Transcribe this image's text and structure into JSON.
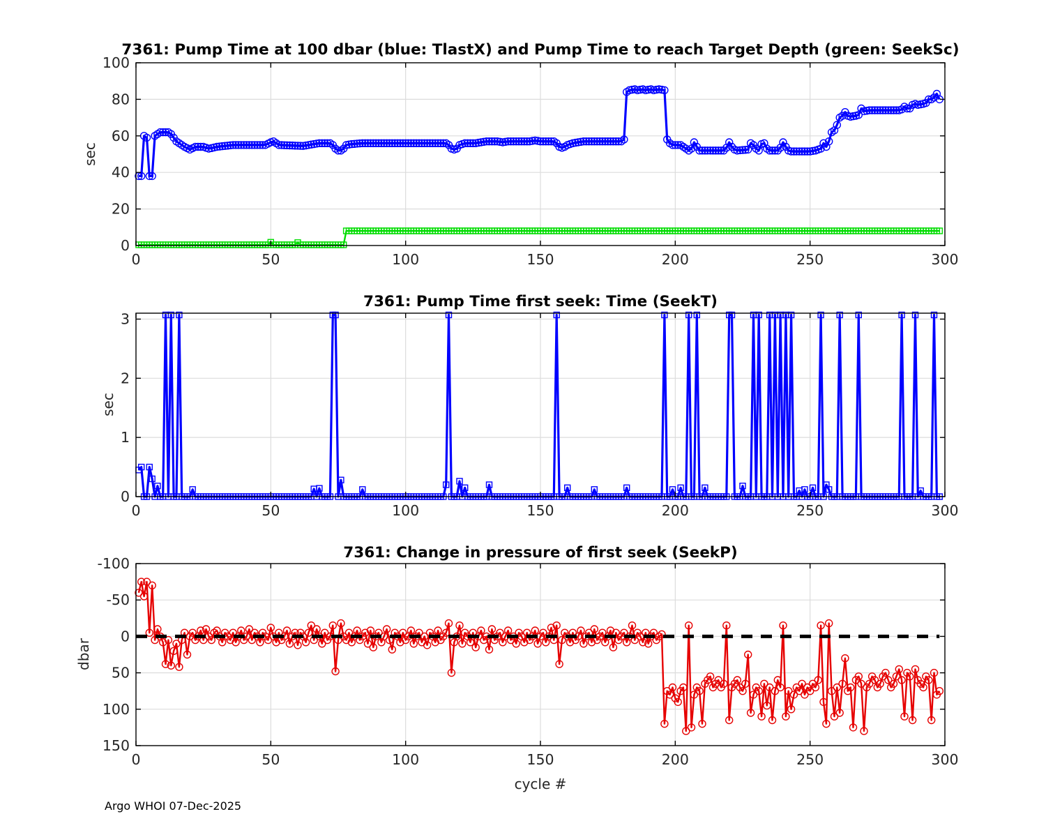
{
  "page": {
    "footer": "Argo WHOI 07-Dec-2025",
    "background": "#ffffff"
  },
  "colors": {
    "blue": "#0000ff",
    "green": "#00dd00",
    "red": "#e60000",
    "grid": "#dcdcdc",
    "axis": "#000000",
    "tick_label": "#262626",
    "dashed_zero": "#000000"
  },
  "chart_data": [
    {
      "id": "pump-time-100dbar",
      "type": "line",
      "title": "7361:  Pump Time at 100 dbar (blue: TlastX) and Pump Time to reach Target Depth (green: SeekSc)",
      "ylabel": "sec",
      "xlabel": "",
      "xlim": [
        0,
        300
      ],
      "ylim": [
        0,
        100
      ],
      "yreverse": false,
      "xticks": [
        0,
        50,
        100,
        150,
        200,
        250,
        300
      ],
      "yticks": [
        0,
        20,
        40,
        60,
        80,
        100
      ],
      "grid": true,
      "series": [
        {
          "name": "TlastX",
          "color": "blue",
          "marker": "circle",
          "interpolate": "unit",
          "keypoints": [
            [
              1,
              38
            ],
            [
              2,
              38
            ],
            [
              3,
              60
            ],
            [
              4,
              59
            ],
            [
              5,
              38
            ],
            [
              6,
              38
            ],
            [
              7,
              60
            ],
            [
              8,
              61
            ],
            [
              9,
              62
            ],
            [
              12,
              62
            ],
            [
              13,
              61
            ],
            [
              14,
              59
            ],
            [
              15,
              57
            ],
            [
              16,
              56
            ],
            [
              17,
              55
            ],
            [
              18,
              54
            ],
            [
              20,
              52.5
            ],
            [
              22,
              54
            ],
            [
              25,
              54
            ],
            [
              27,
              53
            ],
            [
              30,
              54
            ],
            [
              33,
              54.5
            ],
            [
              36,
              55
            ],
            [
              48,
              55
            ],
            [
              50,
              56.5
            ],
            [
              51,
              57
            ],
            [
              52,
              56
            ],
            [
              53,
              55
            ],
            [
              62,
              54.5
            ],
            [
              66,
              55.5
            ],
            [
              68,
              56
            ],
            [
              72,
              56
            ],
            [
              73,
              55
            ],
            [
              74,
              53
            ],
            [
              75,
              52
            ],
            [
              76,
              52
            ],
            [
              77,
              53
            ],
            [
              78,
              55
            ],
            [
              80,
              55.5
            ],
            [
              84,
              56
            ],
            [
              112,
              56
            ],
            [
              115,
              56
            ],
            [
              116,
              55
            ],
            [
              117,
              53
            ],
            [
              118,
              52.5
            ],
            [
              119,
              53
            ],
            [
              120,
              55
            ],
            [
              122,
              56
            ],
            [
              126,
              56
            ],
            [
              130,
              57
            ],
            [
              134,
              57
            ],
            [
              136,
              56.5
            ],
            [
              138,
              57
            ],
            [
              146,
              57
            ],
            [
              148,
              57.5
            ],
            [
              150,
              57
            ],
            [
              155,
              57
            ],
            [
              156,
              56
            ],
            [
              157,
              54
            ],
            [
              158,
              53.5
            ],
            [
              159,
              54
            ],
            [
              160,
              55
            ],
            [
              162,
              56
            ],
            [
              164,
              56.5
            ],
            [
              166,
              57
            ],
            [
              180,
              57
            ],
            [
              181,
              58
            ],
            [
              182,
              84
            ],
            [
              183,
              85
            ],
            [
              185,
              85.5
            ],
            [
              186,
              85
            ],
            [
              188,
              85.5
            ],
            [
              189,
              85
            ],
            [
              191,
              85.5
            ],
            [
              192,
              85
            ],
            [
              194,
              85.5
            ],
            [
              196,
              85
            ],
            [
              197,
              58
            ],
            [
              198,
              56
            ],
            [
              199,
              55
            ],
            [
              202,
              55
            ],
            [
              203,
              54
            ],
            [
              205,
              52
            ],
            [
              206,
              53
            ],
            [
              207,
              56.5
            ],
            [
              208,
              54
            ],
            [
              209,
              52
            ],
            [
              218,
              52
            ],
            [
              219,
              53.5
            ],
            [
              220,
              56.5
            ],
            [
              221,
              54
            ],
            [
              222,
              52.5
            ],
            [
              223,
              52
            ],
            [
              227,
              52.5
            ],
            [
              228,
              56
            ],
            [
              229,
              55
            ],
            [
              230,
              53
            ],
            [
              231,
              52
            ],
            [
              232,
              55.5
            ],
            [
              233,
              56
            ],
            [
              234,
              53
            ],
            [
              235,
              52
            ],
            [
              238,
              52
            ],
            [
              239,
              53.5
            ],
            [
              240,
              56.5
            ],
            [
              241,
              54
            ],
            [
              242,
              52
            ],
            [
              243,
              51.5
            ],
            [
              250,
              51.5
            ],
            [
              252,
              52
            ],
            [
              254,
              53
            ],
            [
              255,
              56
            ],
            [
              256,
              54
            ],
            [
              257,
              57
            ],
            [
              258,
              62
            ],
            [
              259,
              63
            ],
            [
              260,
              66
            ],
            [
              261,
              70
            ],
            [
              262,
              71
            ],
            [
              263,
              73
            ],
            [
              264,
              71
            ],
            [
              265,
              70.5
            ],
            [
              267,
              71
            ],
            [
              268,
              71.5
            ],
            [
              269,
              75
            ],
            [
              270,
              73.5
            ],
            [
              272,
              74
            ],
            [
              283,
              74
            ],
            [
              284,
              74.5
            ],
            [
              285,
              76
            ],
            [
              286,
              75
            ],
            [
              287,
              75
            ],
            [
              288,
              77
            ],
            [
              289,
              77.5
            ],
            [
              290,
              77
            ],
            [
              292,
              77.5
            ],
            [
              293,
              78
            ],
            [
              294,
              80
            ],
            [
              295,
              80
            ],
            [
              296,
              81
            ],
            [
              297,
              83
            ],
            [
              298,
              80
            ]
          ]
        },
        {
          "name": "SeekSc",
          "color": "green",
          "marker": "square",
          "interpolate": "unit",
          "keypoints": [
            [
              1,
              0.4
            ],
            [
              49,
              0.4
            ],
            [
              50,
              1.8
            ],
            [
              51,
              0.4
            ],
            [
              59,
              0.4
            ],
            [
              60,
              1.6
            ],
            [
              61,
              0.4
            ],
            [
              77,
              0.4
            ],
            [
              78,
              8
            ],
            [
              298,
              8
            ]
          ]
        }
      ]
    },
    {
      "id": "seekt",
      "type": "line",
      "title": "7361: Pump Time first seek: Time (SeekT)",
      "ylabel": "sec",
      "xlabel": "",
      "xlim": [
        0,
        300
      ],
      "ylim": [
        0,
        3.1
      ],
      "yreverse": false,
      "xticks": [
        0,
        50,
        100,
        150,
        200,
        250,
        300
      ],
      "yticks": [
        0,
        1,
        2,
        3
      ],
      "grid": true,
      "series": [
        {
          "name": "SeekT",
          "color": "blue",
          "marker": "square",
          "baseline": 0,
          "xrange": [
            1,
            298
          ],
          "spike_value": 3.07,
          "spikes_full": [
            11,
            13,
            16,
            73,
            74,
            116,
            156,
            196,
            205,
            208,
            220,
            221,
            229,
            231,
            235,
            237,
            239,
            241,
            243,
            254,
            261,
            268,
            284,
            289,
            296
          ],
          "spikes_small": [
            [
              1,
              0.45
            ],
            [
              2,
              0.5
            ],
            [
              5,
              0.5
            ],
            [
              6,
              0.3
            ],
            [
              8,
              0.18
            ],
            [
              21,
              0.12
            ],
            [
              66,
              0.13
            ],
            [
              68,
              0.14
            ],
            [
              76,
              0.28
            ],
            [
              84,
              0.12
            ],
            [
              115,
              0.2
            ],
            [
              120,
              0.26
            ],
            [
              122,
              0.15
            ],
            [
              131,
              0.2
            ],
            [
              160,
              0.15
            ],
            [
              170,
              0.12
            ],
            [
              182,
              0.15
            ],
            [
              199,
              0.12
            ],
            [
              202,
              0.15
            ],
            [
              211,
              0.15
            ],
            [
              225,
              0.18
            ],
            [
              246,
              0.1
            ],
            [
              248,
              0.12
            ],
            [
              251,
              0.15
            ],
            [
              256,
              0.2
            ],
            [
              257,
              0.12
            ],
            [
              291,
              0.1
            ]
          ]
        }
      ]
    },
    {
      "id": "seekp",
      "type": "line",
      "title": "7361: Change in pressure of first seek (SeekP)",
      "ylabel": "dbar",
      "xlabel": "cycle #",
      "xlim": [
        0,
        300
      ],
      "ylim": [
        -100,
        150
      ],
      "yreverse": true,
      "xticks": [
        0,
        50,
        100,
        150,
        200,
        250,
        300
      ],
      "yticks": [
        -100,
        -50,
        0,
        50,
        100,
        150
      ],
      "grid": true,
      "series": [
        {
          "name": "SeekP",
          "color": "red",
          "marker": "circle",
          "x_start": 1,
          "values": [
            -60,
            -75,
            -55,
            -75,
            -5,
            -70,
            5,
            -10,
            0,
            8,
            38,
            5,
            40,
            20,
            10,
            42,
            5,
            -5,
            25,
            0,
            -5,
            5,
            0,
            -8,
            5,
            -10,
            0,
            5,
            -5,
            -8,
            0,
            8,
            -5,
            0,
            5,
            -5,
            8,
            0,
            -8,
            5,
            0,
            -10,
            5,
            -5,
            0,
            8,
            -5,
            0,
            5,
            -12,
            0,
            8,
            -5,
            5,
            0,
            -8,
            10,
            0,
            -5,
            12,
            -5,
            0,
            8,
            -5,
            -15,
            5,
            -10,
            0,
            10,
            -5,
            5,
            0,
            -15,
            48,
            5,
            -18,
            0,
            5,
            -5,
            8,
            0,
            -8,
            5,
            0,
            -5,
            10,
            -8,
            15,
            0,
            -5,
            8,
            0,
            -10,
            5,
            18,
            -5,
            0,
            8,
            -5,
            5,
            0,
            -8,
            10,
            0,
            -5,
            8,
            0,
            12,
            -5,
            0,
            8,
            -8,
            5,
            0,
            -5,
            -18,
            50,
            8,
            0,
            -15,
            10,
            -5,
            0,
            8,
            -5,
            15,
            0,
            -8,
            5,
            0,
            18,
            -10,
            5,
            0,
            -5,
            8,
            0,
            -8,
            5,
            0,
            10,
            -5,
            0,
            8,
            -5,
            5,
            0,
            -8,
            10,
            0,
            -5,
            8,
            0,
            -12,
            5,
            -15,
            38,
            5,
            -5,
            0,
            8,
            -5,
            5,
            0,
            -8,
            10,
            0,
            -5,
            8,
            -10,
            5,
            0,
            -5,
            8,
            0,
            -8,
            15,
            -5,
            5,
            0,
            -5,
            8,
            0,
            -15,
            5,
            -5,
            0,
            8,
            -5,
            10,
            0,
            -5,
            5,
            0,
            -3,
            120,
            75,
            80,
            70,
            85,
            90,
            75,
            70,
            130,
            -15,
            125,
            80,
            70,
            75,
            120,
            65,
            60,
            55,
            70,
            65,
            60,
            70,
            65,
            -15,
            115,
            70,
            65,
            60,
            70,
            75,
            65,
            25,
            105,
            80,
            70,
            75,
            110,
            65,
            95,
            70,
            115,
            75,
            60,
            70,
            -15,
            110,
            75,
            100,
            80,
            70,
            75,
            65,
            80,
            70,
            75,
            65,
            70,
            60,
            -15,
            90,
            120,
            -18,
            75,
            110,
            70,
            105,
            65,
            30,
            75,
            70,
            125,
            60,
            55,
            65,
            130,
            70,
            65,
            55,
            60,
            70,
            65,
            55,
            50,
            60,
            70,
            65,
            55,
            45,
            60,
            110,
            50,
            55,
            115,
            45,
            60,
            65,
            70,
            55,
            60,
            115,
            50,
            80,
            75
          ]
        },
        {
          "name": "zero-reference",
          "type": "hline",
          "y": 0,
          "xspan": [
            0,
            298
          ],
          "color": "dashed_zero",
          "width": 5,
          "dash": "16 12"
        }
      ]
    }
  ]
}
